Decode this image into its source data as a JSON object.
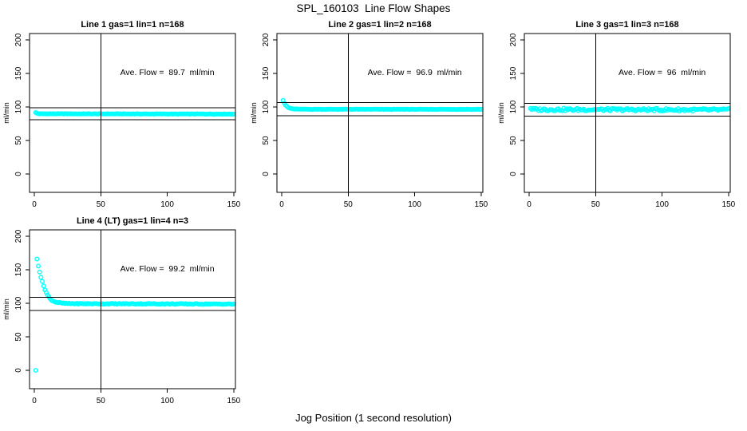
{
  "chart_data": {
    "type": "scatter",
    "title": "SPL_160103  Line Flow Shapes",
    "xlabel": "Jog Position (1 second resolution)",
    "ylabel": "ml/min",
    "point_color": "#00ffff",
    "axis_color": "#000000",
    "xlim": [
      0,
      150
    ],
    "ylim": [
      0,
      200
    ],
    "x_ticks": [
      "0",
      "50",
      "100",
      "150"
    ],
    "y_ticks": [
      "0",
      "50",
      "100",
      "150",
      "200"
    ],
    "vline_x": 50,
    "grid": false,
    "legend": "none",
    "panels": [
      {
        "title": "Line 1 gas=1 lin=1 n=168",
        "annotation": "Ave. Flow =  89.7  ml/min",
        "ave_flow_ml_min": 89.7,
        "n": 168,
        "hlines": [
          98.7,
          80.7
        ],
        "series_anchors": [
          [
            1,
            91.5
          ],
          [
            2,
            90.5
          ],
          [
            4,
            89.8
          ],
          [
            150,
            89.4
          ]
        ],
        "jitter": 0.35,
        "x_range": [
          1,
          150
        ],
        "outliers": []
      },
      {
        "title": "Line 2 gas=1 lin=2 n=168",
        "annotation": "Ave. Flow =  96.9  ml/min",
        "ave_flow_ml_min": 96.9,
        "n": 168,
        "hlines": [
          106.6,
          87.2
        ],
        "series_anchors": [
          [
            1,
            110
          ],
          [
            2,
            105.5
          ],
          [
            3,
            102.5
          ],
          [
            4,
            100.5
          ],
          [
            5,
            99
          ],
          [
            6,
            98.2
          ],
          [
            8,
            97.3
          ],
          [
            10,
            96.9
          ],
          [
            15,
            96.6
          ],
          [
            150,
            96.5
          ]
        ],
        "jitter": 0.3,
        "x_range": [
          1,
          150
        ],
        "outliers": []
      },
      {
        "title": "Line 3 gas=1 lin=3 n=168",
        "annotation": "Ave. Flow =  96  ml/min",
        "ave_flow_ml_min": 96,
        "n": 168,
        "hlines": [
          105.6,
          86.4
        ],
        "series_anchors": [
          [
            1,
            98
          ],
          [
            3,
            96.2
          ],
          [
            150,
            95.6
          ]
        ],
        "jitter": 2.0,
        "x_range": [
          1,
          150
        ],
        "outliers": []
      },
      {
        "title": "Line 4 (LT) gas=1 lin=4 n=3",
        "annotation": "Ave. Flow =  99.2  ml/min",
        "ave_flow_ml_min": 99.2,
        "n": 3,
        "hlines": [
          109.1,
          89.3
        ],
        "series_anchors": [
          [
            2,
            166
          ],
          [
            3,
            156
          ],
          [
            4,
            147
          ],
          [
            5,
            139
          ],
          [
            6,
            132
          ],
          [
            7,
            126
          ],
          [
            8,
            120.5
          ],
          [
            9,
            116
          ],
          [
            10,
            112
          ],
          [
            12,
            106.5
          ],
          [
            14,
            103.5
          ],
          [
            16,
            101.8
          ],
          [
            20,
            100.3
          ],
          [
            25,
            99.6
          ],
          [
            40,
            99.3
          ],
          [
            80,
            99.2
          ],
          [
            150,
            98.8
          ]
        ],
        "jitter": 0.6,
        "x_range": [
          2,
          150
        ],
        "outliers": [
          [
            1,
            0
          ]
        ]
      }
    ]
  }
}
